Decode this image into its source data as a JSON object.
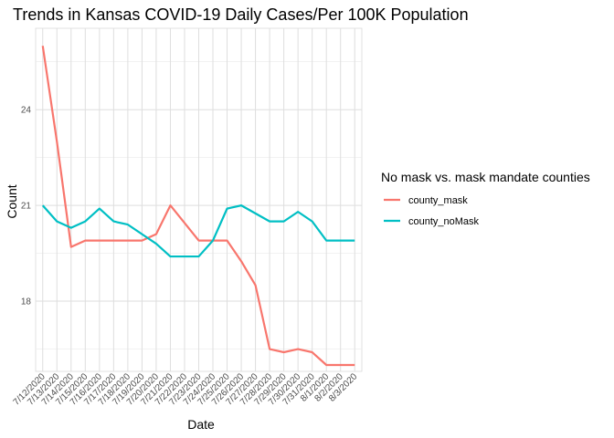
{
  "chart_data": {
    "type": "line",
    "title": "Trends in Kansas COVID-19 Daily Cases/Per 100K Population",
    "xlabel": "Date",
    "ylabel": "Count",
    "categories": [
      "7/12/2020",
      "7/13/2020",
      "7/14/2020",
      "7/15/2020",
      "7/16/2020",
      "7/17/2020",
      "7/18/2020",
      "7/19/2020",
      "7/20/2020",
      "7/21/2020",
      "7/22/2020",
      "7/23/2020",
      "7/24/2020",
      "7/25/2020",
      "7/26/2020",
      "7/27/2020",
      "7/28/2020",
      "7/29/2020",
      "7/30/2020",
      "7/31/2020",
      "8/1/2020",
      "8/2/2020",
      "8/3/2020"
    ],
    "y_ticks": [
      18,
      21,
      24
    ],
    "ylim": [
      15.8,
      26.55
    ],
    "grid": true,
    "legend_position": "right",
    "legend_title": "No mask vs. mask mandate counties",
    "series": [
      {
        "name": "county_mask",
        "color": "#F8766D",
        "values": [
          26.0,
          23.0,
          19.7,
          19.9,
          19.9,
          19.9,
          19.9,
          19.9,
          20.1,
          21.0,
          20.45,
          19.9,
          19.9,
          19.9,
          19.25,
          18.5,
          16.5,
          16.4,
          16.5,
          16.4,
          16.0,
          16.0,
          16.0
        ]
      },
      {
        "name": "county_noMask",
        "color": "#00BFC4",
        "values": [
          21.0,
          20.5,
          20.3,
          20.5,
          20.9,
          20.5,
          20.4,
          20.1,
          19.8,
          19.4,
          19.4,
          19.4,
          19.9,
          20.9,
          21.0,
          20.75,
          20.5,
          20.5,
          20.8,
          20.5,
          19.9,
          19.9,
          19.9
        ]
      }
    ]
  }
}
